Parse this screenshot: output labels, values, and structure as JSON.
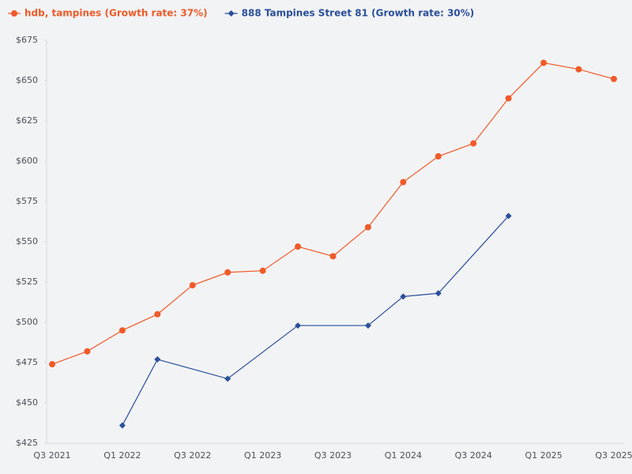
{
  "chart_data": {
    "type": "line",
    "categories": [
      "Q3 2021",
      null,
      "Q1 2022",
      null,
      "Q3 2022",
      null,
      "Q1 2023",
      null,
      "Q3 2023",
      null,
      "Q1 2024",
      null,
      "Q3 2024",
      null,
      "Q1 2025",
      null,
      "Q3 2025"
    ],
    "series": [
      {
        "name": "hdb, tampines (Growth rate: 37%)",
        "color": "#f05a28",
        "marker": "circle",
        "values": [
          474,
          482,
          495,
          505,
          523,
          531,
          532,
          547,
          541,
          559,
          587,
          603,
          611,
          639,
          661,
          657,
          651
        ]
      },
      {
        "name": "888 Tampines Street 81 (Growth rate: 30%)",
        "color": "#2a4f9a",
        "marker": "diamond",
        "values": [
          null,
          null,
          436,
          477,
          null,
          465,
          null,
          498,
          null,
          498,
          516,
          518,
          null,
          566,
          null,
          null,
          null
        ]
      }
    ],
    "span_gaps": true,
    "ylim": [
      425,
      675
    ],
    "yticks": [
      {
        "value": 425,
        "label": "$425"
      },
      {
        "value": 450,
        "label": "$450"
      },
      {
        "value": 475,
        "label": "$475"
      },
      {
        "value": 500,
        "label": "$500"
      },
      {
        "value": 525,
        "label": "$525"
      },
      {
        "value": 550,
        "label": "$550"
      },
      {
        "value": 575,
        "label": "$575"
      },
      {
        "value": 600,
        "label": "$600"
      },
      {
        "value": 625,
        "label": "$625"
      },
      {
        "value": 650,
        "label": "$650"
      },
      {
        "value": 675,
        "label": "$675"
      }
    ],
    "grid": false,
    "legend": "top"
  }
}
